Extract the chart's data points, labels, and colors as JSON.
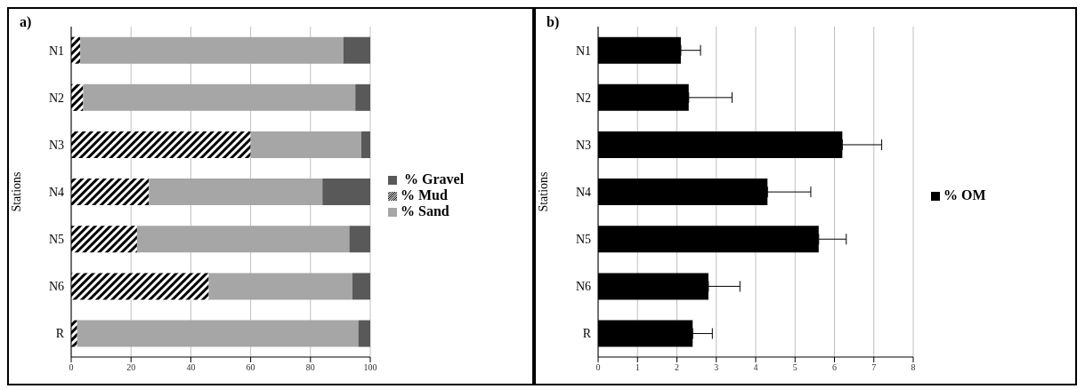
{
  "chart_data": [
    {
      "type": "bar",
      "orientation": "horizontal",
      "stacked": true,
      "annotations": [
        "a)"
      ],
      "ylabel": "Stations",
      "categories": [
        "N1",
        "N2",
        "N3",
        "N4",
        "N5",
        "N6",
        "R"
      ],
      "series": [
        {
          "name": "% Mud",
          "color": "#000000",
          "values": [
            3,
            4,
            60,
            26,
            22,
            46,
            2
          ]
        },
        {
          "name": "% Sand",
          "color": "#a6a6a6",
          "values": [
            88,
            91,
            37,
            58,
            71,
            48,
            94
          ]
        },
        {
          "name": " % Gravel",
          "color": "#595959",
          "values": [
            9,
            5,
            3,
            16,
            7,
            6,
            4
          ]
        }
      ],
      "xlim": [
        0,
        100
      ],
      "xticks": [
        0,
        20,
        40,
        60,
        80,
        100
      ],
      "grid": "x",
      "legend": "right"
    },
    {
      "type": "bar",
      "orientation": "horizontal",
      "annotations": [
        "b)"
      ],
      "ylabel": "Stations",
      "categories": [
        "N1",
        "N2",
        "N3",
        "N4",
        "N5",
        "N6",
        "R"
      ],
      "series": [
        {
          "name": "% OM",
          "color": "#000000",
          "values": [
            2.1,
            2.3,
            6.2,
            4.3,
            5.6,
            2.8,
            2.4
          ],
          "errors": [
            [
              2.1,
              2.6
            ],
            [
              2.3,
              3.4
            ],
            [
              6.2,
              7.2
            ],
            [
              4.3,
              5.4
            ],
            [
              5.6,
              6.3
            ],
            [
              2.8,
              3.6
            ],
            [
              2.4,
              2.9
            ]
          ]
        }
      ],
      "xlim": [
        0,
        8
      ],
      "xticks": [
        0,
        1,
        2,
        3,
        4,
        5,
        6,
        7,
        8
      ],
      "grid": "x",
      "legend": "right"
    }
  ]
}
